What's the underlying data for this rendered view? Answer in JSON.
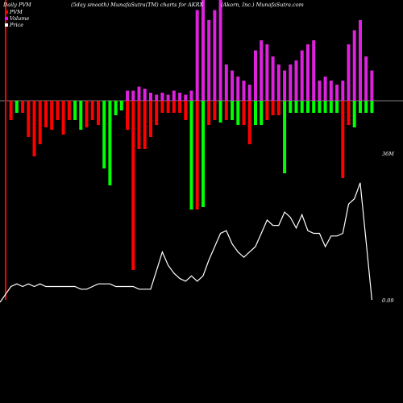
{
  "header": {
    "left": "Daily PVM",
    "smooth": "(5day smooth) MunafaSutra(TM) charts for AKRX",
    "company": "(Akorn, Inc.) MunafaSutra.com"
  },
  "legend": [
    {
      "label": "PVM",
      "color": "#ff0000"
    },
    {
      "label": "Volume",
      "color": "#ff00ff"
    },
    {
      "label": "Price",
      "color": "#ffffff"
    }
  ],
  "colors": {
    "background": "#000000",
    "pvm_positive": "#00ff00",
    "pvm_negative": "#ff0000",
    "volume": "#dd22dd",
    "price": "#ffffff",
    "zero_line": "#ffffff"
  },
  "chart_data": {
    "type": "bar",
    "axis_labels": {
      "volume_level": "36M",
      "price_level": "0.09"
    },
    "pvm_bars": [
      {
        "dir": -1,
        "mag": 0.08,
        "color": "red"
      },
      {
        "dir": -1,
        "mag": 0.05,
        "color": "green"
      },
      {
        "dir": -1,
        "mag": 0.05,
        "color": "red"
      },
      {
        "dir": -1,
        "mag": 0.15,
        "color": "red"
      },
      {
        "dir": -1,
        "mag": 0.23,
        "color": "red"
      },
      {
        "dir": -1,
        "mag": 0.18,
        "color": "red"
      },
      {
        "dir": -1,
        "mag": 0.11,
        "color": "red"
      },
      {
        "dir": -1,
        "mag": 0.12,
        "color": "red"
      },
      {
        "dir": -1,
        "mag": 0.08,
        "color": "red"
      },
      {
        "dir": -1,
        "mag": 0.14,
        "color": "red"
      },
      {
        "dir": -1,
        "mag": 0.08,
        "color": "red"
      },
      {
        "dir": -1,
        "mag": 0.08,
        "color": "green"
      },
      {
        "dir": -1,
        "mag": 0.12,
        "color": "green"
      },
      {
        "dir": -1,
        "mag": 0.11,
        "color": "red"
      },
      {
        "dir": -1,
        "mag": 0.08,
        "color": "red"
      },
      {
        "dir": -1,
        "mag": 0.1,
        "color": "red"
      },
      {
        "dir": -1,
        "mag": 0.28,
        "color": "green"
      },
      {
        "dir": -1,
        "mag": 0.35,
        "color": "green"
      },
      {
        "dir": -1,
        "mag": 0.06,
        "color": "green"
      },
      {
        "dir": -1,
        "mag": 0.04,
        "color": "green"
      },
      {
        "dir": -1,
        "mag": 0.12,
        "color": "red"
      },
      {
        "dir": -1,
        "mag": 0.7,
        "color": "red"
      },
      {
        "dir": -1,
        "mag": 0.2,
        "color": "red"
      },
      {
        "dir": -1,
        "mag": 0.2,
        "color": "red"
      },
      {
        "dir": -1,
        "mag": 0.15,
        "color": "red"
      },
      {
        "dir": -1,
        "mag": 0.1,
        "color": "red"
      },
      {
        "dir": -1,
        "mag": 0.05,
        "color": "red"
      },
      {
        "dir": -1,
        "mag": 0.05,
        "color": "red"
      },
      {
        "dir": -1,
        "mag": 0.05,
        "color": "red"
      },
      {
        "dir": -1,
        "mag": 0.05,
        "color": "red"
      },
      {
        "dir": -1,
        "mag": 0.08,
        "color": "red"
      },
      {
        "dir": -1,
        "mag": 0.45,
        "color": "green"
      },
      {
        "dir": -1,
        "mag": 0.45,
        "color": "red"
      },
      {
        "dir": -1,
        "mag": 0.44,
        "color": "green"
      },
      {
        "dir": -1,
        "mag": 0.1,
        "color": "red"
      },
      {
        "dir": -1,
        "mag": 0.08,
        "color": "red"
      },
      {
        "dir": -1,
        "mag": 0.09,
        "color": "green"
      },
      {
        "dir": -1,
        "mag": 0.08,
        "color": "red"
      },
      {
        "dir": -1,
        "mag": 0.08,
        "color": "green"
      },
      {
        "dir": -1,
        "mag": 0.1,
        "color": "green"
      },
      {
        "dir": -1,
        "mag": 0.1,
        "color": "red"
      },
      {
        "dir": -1,
        "mag": 0.18,
        "color": "red"
      },
      {
        "dir": -1,
        "mag": 0.1,
        "color": "green"
      },
      {
        "dir": -1,
        "mag": 0.1,
        "color": "green"
      },
      {
        "dir": -1,
        "mag": 0.08,
        "color": "red"
      },
      {
        "dir": -1,
        "mag": 0.06,
        "color": "red"
      },
      {
        "dir": -1,
        "mag": 0.06,
        "color": "red"
      },
      {
        "dir": -1,
        "mag": 0.3,
        "color": "green"
      },
      {
        "dir": -1,
        "mag": 0.05,
        "color": "green"
      },
      {
        "dir": -1,
        "mag": 0.05,
        "color": "green"
      },
      {
        "dir": -1,
        "mag": 0.05,
        "color": "green"
      },
      {
        "dir": -1,
        "mag": 0.05,
        "color": "green"
      },
      {
        "dir": -1,
        "mag": 0.05,
        "color": "green"
      },
      {
        "dir": -1,
        "mag": 0.05,
        "color": "green"
      },
      {
        "dir": -1,
        "mag": 0.05,
        "color": "green"
      },
      {
        "dir": -1,
        "mag": 0.05,
        "color": "green"
      },
      {
        "dir": -1,
        "mag": 0.05,
        "color": "green"
      },
      {
        "dir": -1,
        "mag": 0.32,
        "color": "red"
      },
      {
        "dir": -1,
        "mag": 0.1,
        "color": "red"
      },
      {
        "dir": -1,
        "mag": 0.11,
        "color": "green"
      },
      {
        "dir": -1,
        "mag": 0.05,
        "color": "green"
      },
      {
        "dir": -1,
        "mag": 0.05,
        "color": "green"
      },
      {
        "dir": -1,
        "mag": 0.05,
        "color": "green"
      }
    ],
    "volume_bars": [
      0.0,
      0.0,
      0.0,
      0.0,
      0.0,
      0.0,
      0.0,
      0.0,
      0.0,
      0.0,
      0.0,
      0.0,
      0.0,
      0.0,
      0.0,
      0.0,
      0.0,
      0.0,
      0.0,
      0.0,
      0.05,
      0.05,
      0.07,
      0.06,
      0.04,
      0.03,
      0.04,
      0.03,
      0.05,
      0.04,
      0.03,
      0.05,
      0.45,
      0.5,
      0.4,
      0.45,
      0.5,
      0.18,
      0.15,
      0.12,
      0.1,
      0.08,
      0.25,
      0.3,
      0.28,
      0.22,
      0.18,
      0.15,
      0.18,
      0.2,
      0.25,
      0.28,
      0.3,
      0.1,
      0.12,
      0.1,
      0.08,
      0.1,
      0.28,
      0.35,
      0.4,
      0.22,
      0.15
    ],
    "price_line": [
      0.05,
      0.06,
      0.05,
      0.06,
      0.05,
      0.06,
      0.05,
      0.05,
      0.05,
      0.05,
      0.05,
      0.05,
      0.04,
      0.04,
      0.05,
      0.06,
      0.06,
      0.06,
      0.05,
      0.05,
      0.05,
      0.05,
      0.04,
      0.04,
      0.04,
      0.11,
      0.18,
      0.13,
      0.1,
      0.08,
      0.07,
      0.09,
      0.07,
      0.09,
      0.15,
      0.2,
      0.25,
      0.26,
      0.21,
      0.18,
      0.16,
      0.18,
      0.2,
      0.25,
      0.3,
      0.28,
      0.28,
      0.33,
      0.31,
      0.27,
      0.32,
      0.26,
      0.25,
      0.25,
      0.2,
      0.24,
      0.24,
      0.25,
      0.36,
      0.38,
      0.44,
      0.22,
      0.0
    ]
  }
}
